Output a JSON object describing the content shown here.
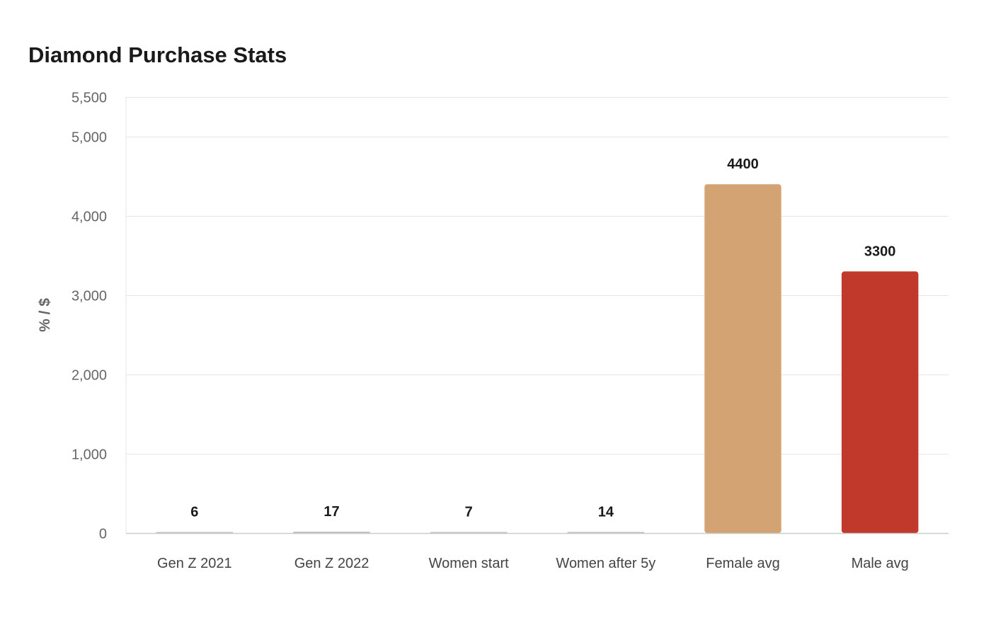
{
  "chart_data": {
    "type": "bar",
    "title": "Diamond Purchase Stats",
    "xlabel": "",
    "ylabel": "% / $",
    "categories": [
      "Gen Z 2021",
      "Gen Z 2022",
      "Women start",
      "Women after 5y",
      "Female avg",
      "Male avg"
    ],
    "values": [
      6,
      17,
      7,
      14,
      4400,
      3300
    ],
    "bar_colors": [
      "#bdbdbd",
      "#bdbdbd",
      "#bdbdbd",
      "#bdbdbd",
      "#d4a373",
      "#c0392b"
    ],
    "ylim": [
      0,
      5500
    ],
    "yticks": [
      0,
      1000,
      2000,
      3000,
      4000,
      5000,
      5500
    ],
    "ytick_labels": [
      "0",
      "1,000",
      "2,000",
      "3,000",
      "4,000",
      "5,000",
      "5,500"
    ],
    "data_labels": [
      "6",
      "17",
      "7",
      "14",
      "4400",
      "3300"
    ],
    "grid": true,
    "legend": "none"
  }
}
